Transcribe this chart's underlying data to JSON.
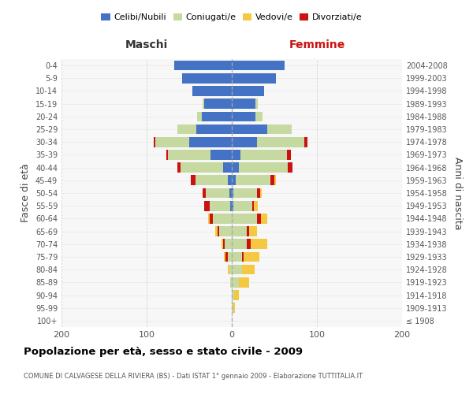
{
  "age_groups": [
    "100+",
    "95-99",
    "90-94",
    "85-89",
    "80-84",
    "75-79",
    "70-74",
    "65-69",
    "60-64",
    "55-59",
    "50-54",
    "45-49",
    "40-44",
    "35-39",
    "30-34",
    "25-29",
    "20-24",
    "15-19",
    "10-14",
    "5-9",
    "0-4"
  ],
  "birth_years": [
    "≤ 1908",
    "1909-1913",
    "1914-1918",
    "1919-1923",
    "1924-1928",
    "1929-1933",
    "1934-1938",
    "1939-1943",
    "1944-1948",
    "1949-1953",
    "1954-1958",
    "1959-1963",
    "1964-1968",
    "1969-1973",
    "1974-1978",
    "1979-1983",
    "1984-1988",
    "1989-1993",
    "1994-1998",
    "1999-2003",
    "2004-2008"
  ],
  "colors": {
    "celibi": "#4472C4",
    "coniugati": "#C5D9A0",
    "vedovi": "#F5C842",
    "divorziati": "#CC1111",
    "background": "#F7F7F7",
    "grid_x": "#CCCCCC",
    "grid_y": "#DDDDDD"
  },
  "maschi": {
    "celibi": [
      0,
      0,
      0,
      0,
      0,
      0,
      0,
      0,
      0,
      2,
      3,
      5,
      10,
      25,
      50,
      42,
      35,
      32,
      46,
      58,
      68
    ],
    "coniugati": [
      0,
      0,
      0,
      2,
      3,
      5,
      8,
      15,
      22,
      24,
      28,
      38,
      50,
      50,
      40,
      22,
      6,
      2,
      0,
      0,
      0
    ],
    "vedovi": [
      0,
      0,
      0,
      0,
      2,
      2,
      2,
      2,
      2,
      0,
      0,
      0,
      0,
      0,
      0,
      0,
      0,
      0,
      0,
      0,
      0
    ],
    "divorziati": [
      0,
      0,
      0,
      0,
      0,
      2,
      2,
      2,
      4,
      6,
      3,
      5,
      4,
      2,
      2,
      0,
      0,
      0,
      0,
      0,
      0
    ]
  },
  "femmine": {
    "celibi": [
      0,
      0,
      0,
      0,
      0,
      0,
      0,
      0,
      0,
      2,
      2,
      5,
      8,
      10,
      30,
      42,
      28,
      28,
      38,
      52,
      62
    ],
    "coniugati": [
      0,
      2,
      3,
      8,
      12,
      12,
      18,
      18,
      30,
      22,
      28,
      40,
      58,
      55,
      55,
      28,
      8,
      3,
      0,
      0,
      0
    ],
    "vedovi": [
      0,
      2,
      5,
      12,
      15,
      18,
      20,
      10,
      8,
      5,
      2,
      2,
      0,
      0,
      0,
      0,
      0,
      0,
      0,
      0,
      0
    ],
    "divorziati": [
      0,
      0,
      0,
      0,
      0,
      2,
      4,
      2,
      4,
      2,
      3,
      5,
      5,
      4,
      4,
      0,
      0,
      0,
      0,
      0,
      0
    ]
  },
  "title": "Popolazione per età, sesso e stato civile - 2009",
  "subtitle": "COMUNE DI CALVAGESE DELLA RIVIERA (BS) - Dati ISTAT 1° gennaio 2009 - Elaborazione TUTTITALIA.IT",
  "xlabel_maschi": "Maschi",
  "xlabel_femmine": "Femmine",
  "ylabel_left": "Fasce di età",
  "ylabel_right": "Anni di nascita",
  "xlim": 200,
  "legend_labels": [
    "Celibi/Nubili",
    "Coniugati/e",
    "Vedovi/e",
    "Divorziati/e"
  ]
}
